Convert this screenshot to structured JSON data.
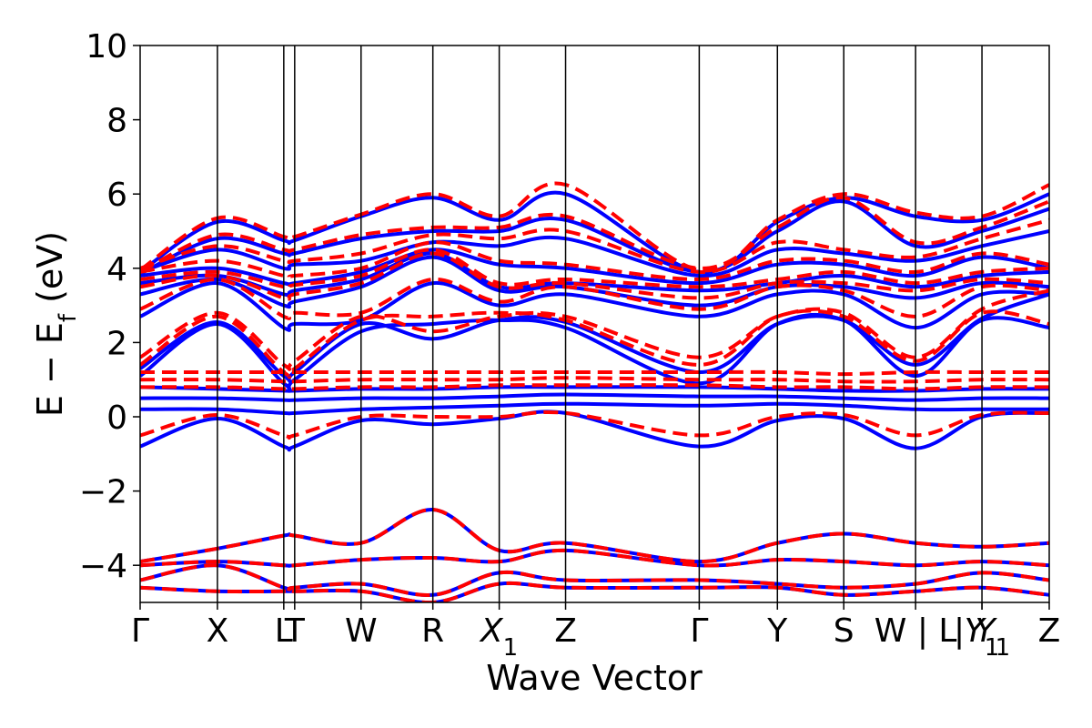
{
  "chart_data": {
    "type": "line",
    "xlabel": "Wave Vector",
    "ylabel": "E − E_f (eV)",
    "ylabel_main": "E − E",
    "ylabel_sub": "f",
    "ylabel_tail": " (eV)",
    "ylim": [
      -5,
      10
    ],
    "yticks": [
      -4,
      -2,
      0,
      2,
      4,
      6,
      8,
      10
    ],
    "grid": false,
    "kpoints": [
      {
        "label": "Γ",
        "x": 0.0,
        "sub": ""
      },
      {
        "label": "X",
        "x": 0.085,
        "sub": ""
      },
      {
        "label": "L",
        "x": 0.158,
        "sub": ""
      },
      {
        "label": "T",
        "x": 0.17,
        "sub": ""
      },
      {
        "label": "W",
        "x": 0.243,
        "sub": ""
      },
      {
        "label": "R",
        "x": 0.322,
        "sub": ""
      },
      {
        "label": "X",
        "x": 0.395,
        "sub": "1"
      },
      {
        "label": "Z",
        "x": 0.468,
        "sub": ""
      },
      {
        "label": "Γ",
        "x": 0.615,
        "sub": ""
      },
      {
        "label": "Y",
        "x": 0.701,
        "sub": ""
      },
      {
        "label": "S",
        "x": 0.774,
        "sub": ""
      },
      {
        "label": "W | L",
        "x": 0.853,
        "sub": ""
      },
      {
        "label": "Y",
        "x": 0.926,
        "sub": "1"
      },
      {
        "label": "| Y",
        "x": 0.926,
        "sub": "1"
      },
      {
        "label": "Z",
        "x": 1.0,
        "sub": ""
      }
    ],
    "series": [
      {
        "style": "solid",
        "color": "#0000ff",
        "bands": [
          [
            -0.8,
            -0.05,
            -0.8,
            -0.8,
            -0.1,
            -0.2,
            -0.05,
            0.1,
            -0.8,
            -0.1,
            -0.05,
            -0.85,
            0.0,
            0.1
          ],
          [
            0.2,
            0.2,
            0.1,
            0.1,
            0.2,
            0.25,
            0.3,
            0.35,
            0.3,
            0.35,
            0.3,
            0.2,
            0.2,
            0.2
          ],
          [
            0.5,
            0.5,
            0.45,
            0.45,
            0.5,
            0.5,
            0.55,
            0.6,
            0.55,
            0.55,
            0.5,
            0.45,
            0.5,
            0.5
          ],
          [
            0.8,
            0.75,
            0.7,
            0.7,
            0.75,
            0.75,
            0.8,
            0.8,
            0.8,
            0.75,
            0.7,
            0.7,
            0.75,
            0.75
          ],
          [
            1.1,
            2.5,
            0.9,
            1.0,
            2.3,
            2.5,
            2.6,
            2.4,
            0.9,
            2.5,
            2.6,
            1.1,
            2.6,
            2.4
          ],
          [
            1.3,
            2.55,
            1.1,
            1.2,
            2.5,
            2.1,
            2.6,
            2.55,
            1.2,
            2.5,
            2.6,
            1.4,
            2.65,
            3.3
          ],
          [
            2.7,
            3.6,
            2.4,
            2.5,
            2.6,
            3.6,
            3.0,
            3.3,
            2.7,
            3.3,
            3.3,
            2.4,
            3.3,
            3.3
          ],
          [
            3.3,
            3.7,
            3.0,
            3.1,
            3.5,
            4.3,
            3.4,
            3.5,
            3.0,
            3.5,
            3.5,
            3.2,
            3.6,
            3.5
          ],
          [
            3.6,
            3.8,
            3.3,
            3.4,
            3.7,
            4.4,
            3.5,
            3.6,
            3.4,
            3.6,
            3.8,
            3.5,
            3.8,
            3.9
          ],
          [
            3.8,
            4.0,
            3.6,
            3.6,
            3.9,
            4.5,
            4.1,
            4.0,
            3.6,
            4.1,
            4.1,
            3.8,
            4.3,
            4.0
          ],
          [
            3.9,
            4.5,
            4.0,
            4.1,
            4.2,
            4.7,
            4.6,
            4.8,
            3.8,
            4.5,
            4.4,
            4.2,
            4.6,
            5.0
          ],
          [
            3.85,
            4.8,
            4.4,
            4.4,
            4.8,
            5.0,
            5.0,
            5.3,
            3.9,
            5.0,
            5.8,
            4.6,
            5.0,
            5.6
          ],
          [
            3.9,
            5.25,
            4.75,
            4.75,
            5.4,
            5.9,
            5.3,
            6.0,
            3.9,
            5.25,
            5.9,
            5.4,
            5.3,
            6.0
          ],
          [
            -3.9,
            -3.55,
            -3.2,
            -3.2,
            -3.4,
            -2.5,
            -3.6,
            -3.4,
            -3.9,
            -3.4,
            -3.15,
            -3.4,
            -3.5,
            -3.4
          ],
          [
            -4.0,
            -3.9,
            -4.0,
            -4.0,
            -3.85,
            -3.8,
            -3.9,
            -3.6,
            -4.0,
            -3.85,
            -3.9,
            -4.0,
            -3.9,
            -4.0
          ],
          [
            -4.4,
            -4.0,
            -4.6,
            -4.6,
            -4.5,
            -4.8,
            -4.2,
            -4.4,
            -4.4,
            -4.5,
            -4.6,
            -4.5,
            -4.2,
            -4.4
          ],
          [
            -4.6,
            -4.7,
            -4.7,
            -4.7,
            -4.7,
            -5.0,
            -4.5,
            -4.6,
            -4.6,
            -4.6,
            -4.8,
            -4.7,
            -4.6,
            -4.8
          ]
        ]
      },
      {
        "style": "dashed",
        "color": "#ff0000",
        "bands": [
          [
            -0.5,
            0.05,
            -0.5,
            -0.5,
            0.0,
            0.0,
            0.0,
            0.1,
            -0.5,
            0.0,
            0.05,
            -0.5,
            0.05,
            0.1
          ],
          [
            0.8,
            0.8,
            0.75,
            0.75,
            0.8,
            0.8,
            0.85,
            0.85,
            0.85,
            0.8,
            0.8,
            0.75,
            0.8,
            0.8
          ],
          [
            1.0,
            1.0,
            0.95,
            0.95,
            1.0,
            1.0,
            1.0,
            1.05,
            1.0,
            1.0,
            0.95,
            0.95,
            1.0,
            1.0
          ],
          [
            1.2,
            1.2,
            1.2,
            1.2,
            1.2,
            1.2,
            1.2,
            1.2,
            1.2,
            1.2,
            1.15,
            1.2,
            1.2,
            1.2
          ],
          [
            1.4,
            2.7,
            1.2,
            1.3,
            2.6,
            2.7,
            2.8,
            2.6,
            1.4,
            2.7,
            2.7,
            1.5,
            2.8,
            2.5
          ],
          [
            1.6,
            2.8,
            1.4,
            1.5,
            2.7,
            2.3,
            2.7,
            2.7,
            1.6,
            2.7,
            2.8,
            1.6,
            2.9,
            3.4
          ],
          [
            2.9,
            3.7,
            2.7,
            2.8,
            2.8,
            3.7,
            3.1,
            3.5,
            2.9,
            3.5,
            3.4,
            2.7,
            3.5,
            3.4
          ],
          [
            3.5,
            3.8,
            3.2,
            3.3,
            3.6,
            4.4,
            3.5,
            3.6,
            3.2,
            3.6,
            3.6,
            3.4,
            3.7,
            3.6
          ],
          [
            3.7,
            3.9,
            3.5,
            3.55,
            3.8,
            4.5,
            3.6,
            3.7,
            3.5,
            3.7,
            3.9,
            3.6,
            3.9,
            4.0
          ],
          [
            3.9,
            4.2,
            3.8,
            3.8,
            4.0,
            4.7,
            4.2,
            4.1,
            3.7,
            4.2,
            4.2,
            3.9,
            4.4,
            4.1
          ],
          [
            4.0,
            4.6,
            4.2,
            4.2,
            4.4,
            4.9,
            4.8,
            5.0,
            3.9,
            4.7,
            4.5,
            4.3,
            4.8,
            5.3
          ],
          [
            3.9,
            4.9,
            4.5,
            4.5,
            4.9,
            5.1,
            5.1,
            5.4,
            4.0,
            5.1,
            5.9,
            4.7,
            5.1,
            5.8
          ],
          [
            3.95,
            5.35,
            4.85,
            4.85,
            5.45,
            6.0,
            5.4,
            6.25,
            3.95,
            5.3,
            6.0,
            5.5,
            5.4,
            6.25
          ],
          [
            -3.9,
            -3.55,
            -3.2,
            -3.2,
            -3.4,
            -2.5,
            -3.6,
            -3.4,
            -3.9,
            -3.4,
            -3.15,
            -3.4,
            -3.5,
            -3.4
          ],
          [
            -4.0,
            -3.9,
            -4.0,
            -4.0,
            -3.85,
            -3.8,
            -3.9,
            -3.6,
            -4.0,
            -3.85,
            -3.9,
            -4.0,
            -3.9,
            -4.0
          ],
          [
            -4.4,
            -4.0,
            -4.6,
            -4.6,
            -4.5,
            -4.8,
            -4.2,
            -4.4,
            -4.4,
            -4.5,
            -4.6,
            -4.5,
            -4.2,
            -4.4
          ],
          [
            -4.6,
            -4.7,
            -4.7,
            -4.7,
            -4.7,
            -5.0,
            -4.5,
            -4.6,
            -4.6,
            -4.6,
            -4.8,
            -4.7,
            -4.6,
            -4.8
          ]
        ]
      }
    ]
  }
}
